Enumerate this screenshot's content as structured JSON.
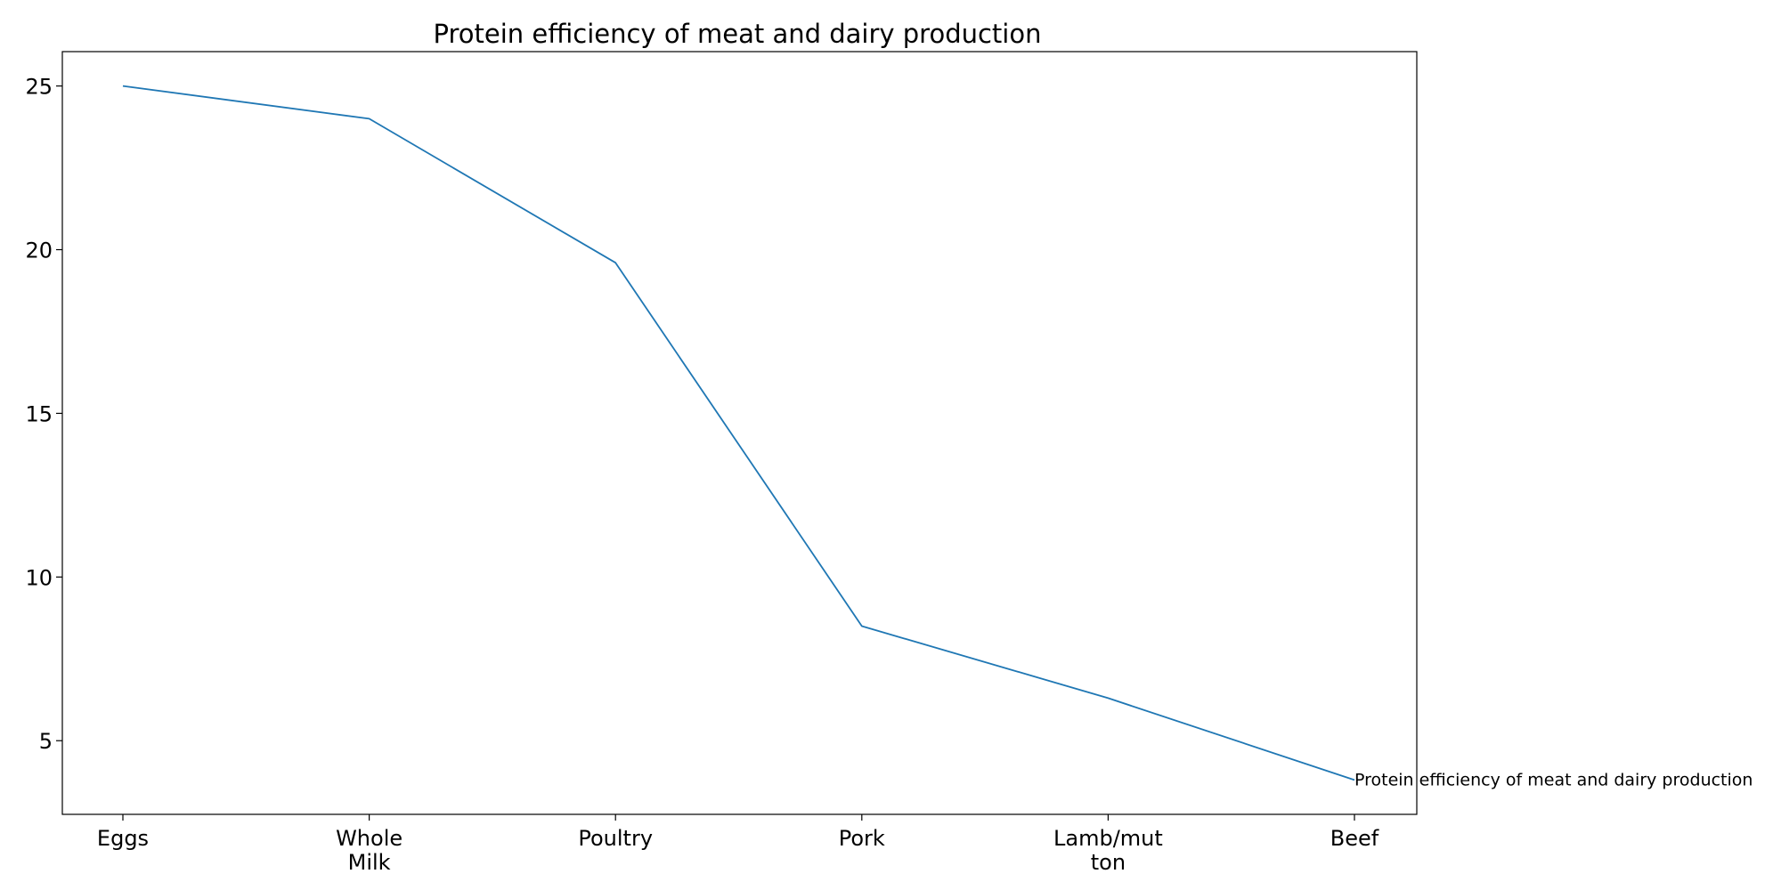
{
  "chart_data": {
    "type": "line",
    "title": "Protein efficiency of meat and dairy production",
    "xlabel": "",
    "ylabel": "",
    "categories": [
      [
        "Eggs"
      ],
      [
        "Whole",
        "Milk"
      ],
      [
        "Poultry"
      ],
      [
        "Pork"
      ],
      [
        "Lamb/mut",
        "ton"
      ],
      [
        "Beef"
      ]
    ],
    "series": [
      {
        "values": [
          25,
          24,
          19.6,
          8.5,
          6.3,
          3.8
        ],
        "color": "#1f77b4"
      }
    ],
    "yticks": [
      5,
      10,
      15,
      20,
      25
    ],
    "ylim": [
      2.75,
      26.05
    ],
    "grid": false,
    "legend": "none",
    "annotation": {
      "text": "Protein efficiency of meat and dairy production",
      "anchor_category": "Beef"
    }
  }
}
